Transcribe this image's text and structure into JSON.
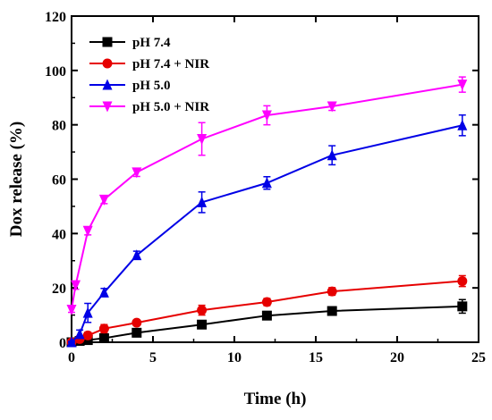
{
  "chart_data": {
    "type": "line",
    "title": "",
    "xlabel": "Time (h)",
    "ylabel": "Dox release (%)",
    "xlim": [
      0,
      25
    ],
    "ylim": [
      0,
      120
    ],
    "xticks": [
      0,
      5,
      10,
      15,
      20,
      25
    ],
    "yticks": [
      0,
      20,
      40,
      60,
      80,
      100,
      120
    ],
    "legend_position": "top-left",
    "grid": false,
    "series": [
      {
        "name": "pH 7.4",
        "color": "#000000",
        "marker": "square",
        "x": [
          0,
          0.5,
          1,
          2,
          4,
          8,
          12,
          16,
          24
        ],
        "y": [
          0,
          0.5,
          0.8,
          1.5,
          3.5,
          6.5,
          9.8,
          11.5,
          13.2
        ],
        "err": [
          0.3,
          0.4,
          0.5,
          0.6,
          1.0,
          1.0,
          1.5,
          1.2,
          2.5
        ]
      },
      {
        "name": "pH 7.4 + NIR",
        "color": "#e60000",
        "marker": "circle",
        "x": [
          0,
          0.5,
          1,
          2,
          4,
          8,
          12,
          16,
          24
        ],
        "y": [
          0,
          1.2,
          2.5,
          5.0,
          7.2,
          11.8,
          14.8,
          18.7,
          22.5
        ],
        "err": [
          0.3,
          0.6,
          1.2,
          1.5,
          1.0,
          1.8,
          1.3,
          1.4,
          2.0
        ]
      },
      {
        "name": "pH 5.0",
        "color": "#0000e6",
        "marker": "triangle-up",
        "x": [
          0,
          0.5,
          1,
          2,
          4,
          8,
          12,
          16,
          24
        ],
        "y": [
          0,
          3.0,
          10.8,
          18.3,
          32.0,
          51.5,
          58.6,
          68.8,
          79.8
        ],
        "err": [
          0.3,
          1.5,
          3.5,
          1.5,
          1.5,
          3.8,
          2.3,
          3.5,
          3.8
        ]
      },
      {
        "name": "pH 5.0 + NIR",
        "color": "#ff00ff",
        "marker": "triangle-down",
        "x": [
          0,
          0.25,
          1,
          2,
          4,
          8,
          12,
          16,
          24
        ],
        "y": [
          12.0,
          21.0,
          41.0,
          52.5,
          62.5,
          74.8,
          83.5,
          86.8,
          94.8
        ],
        "err": [
          1.0,
          1.5,
          1.5,
          1.5,
          1.5,
          6.0,
          3.5,
          1.5,
          2.8
        ]
      }
    ]
  }
}
